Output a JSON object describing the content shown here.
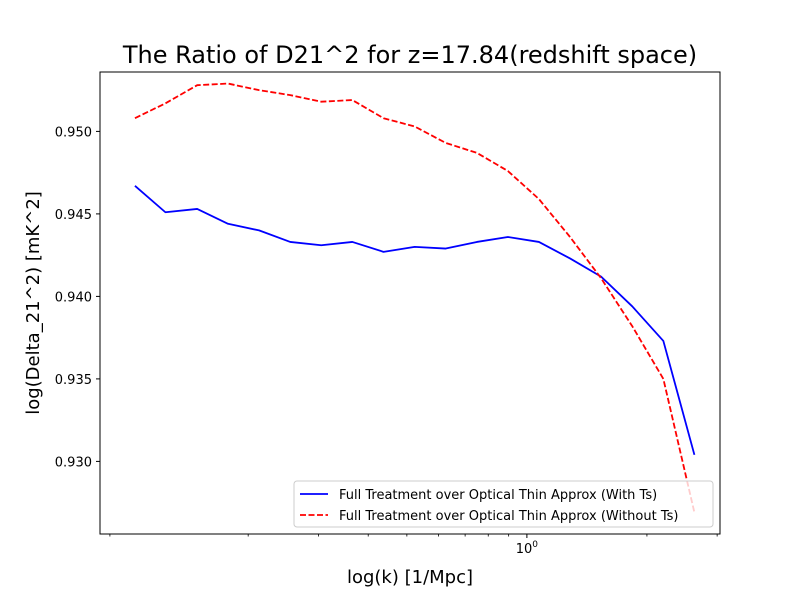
{
  "chart_data": {
    "type": "line",
    "title": "The Ratio of D21^2 for z=17.84(redshift space)",
    "xlabel": "log(k) [1/Mpc]",
    "ylabel": "log(Delta_21^2) [mK^2]",
    "xscale": "log",
    "xlim": [
      0.085,
      3.05
    ],
    "ylim": [
      0.9256,
      0.9536
    ],
    "x_ticks": [
      {
        "value": 1.0,
        "label": "10^0"
      }
    ],
    "y_ticks": [
      0.93,
      0.935,
      0.94,
      0.945,
      0.95
    ],
    "x": [
      0.104,
      0.124,
      0.149,
      0.178,
      0.213,
      0.255,
      0.305,
      0.365,
      0.437,
      0.523,
      0.626,
      0.749,
      0.896,
      1.072,
      1.283,
      1.535,
      1.837,
      2.199,
      2.631
    ],
    "series": [
      {
        "name": "Full Treatment over Optical Thin Approx (With Ts)",
        "color": "#0000ff",
        "style": "solid",
        "values": [
          0.9467,
          0.9451,
          0.9453,
          0.9444,
          0.944,
          0.9433,
          0.9431,
          0.9433,
          0.9427,
          0.943,
          0.9429,
          0.9433,
          0.9436,
          0.9433,
          0.9423,
          0.9412,
          0.9394,
          0.9373,
          0.9304
        ]
      },
      {
        "name": "Full Treatment over Optical Thin Approx (Without Ts)",
        "color": "#ff0000",
        "style": "dashed",
        "values": [
          0.9508,
          0.9517,
          0.9528,
          0.9529,
          0.9525,
          0.9522,
          0.9518,
          0.9519,
          0.9508,
          0.9503,
          0.9493,
          0.9487,
          0.9476,
          0.9459,
          0.9436,
          0.9411,
          0.9382,
          0.935,
          0.9269
        ]
      }
    ],
    "legend_position": "lower-right",
    "grid": false
  }
}
